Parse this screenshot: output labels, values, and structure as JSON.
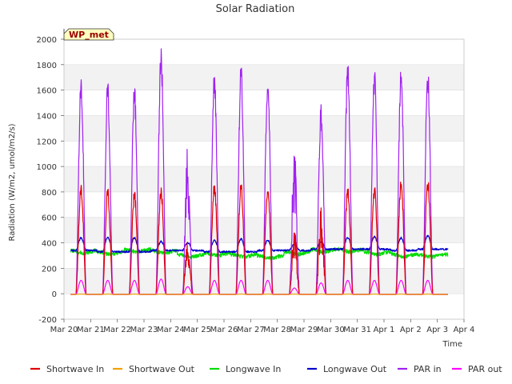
{
  "chart_data": {
    "type": "line",
    "title": "Solar Radiation",
    "xlabel": "Time",
    "ylabel": "Radiation (W/m2, umol/m2/s)",
    "station_label": "WP_met",
    "ylim": [
      -200,
      2000
    ],
    "yticks": [
      -200,
      0,
      200,
      400,
      600,
      800,
      1000,
      1200,
      1400,
      1600,
      1800,
      2000
    ],
    "xlim": [
      0,
      15
    ],
    "xtick_labels": [
      "Mar 20",
      "Mar 21",
      "Mar 22",
      "Mar 23",
      "Mar 24",
      "Mar 25",
      "Mar 26",
      "Mar 27",
      "Mar 28",
      "Mar 29",
      "Mar 30",
      "Mar 31",
      "Apr 1",
      "Apr 2",
      "Apr 3",
      "Apr 4"
    ],
    "grid_bands": true,
    "legend_position": "bottom",
    "day_start": 0.25,
    "data_end": 14.4,
    "series": [
      {
        "name": "Shortwave In",
        "color": "#dd0000",
        "daily_peaks": [
          890,
          840,
          830,
          850,
          420,
          900,
          880,
          880,
          520,
          680,
          860,
          860,
          910,
          930
        ]
      },
      {
        "name": "Shortwave Out",
        "color": "#f0a000",
        "daily_peaks": [
          2,
          2,
          2,
          2,
          2,
          2,
          2,
          2,
          2,
          2,
          2,
          2,
          2,
          2
        ]
      },
      {
        "name": "Longwave In",
        "color": "#00dd00",
        "daily_levels": [
          330,
          320,
          340,
          330,
          300,
          310,
          300,
          290,
          320,
          340,
          340,
          320,
          300,
          300
        ]
      },
      {
        "name": "Longwave Out",
        "color": "#0000cc",
        "daily_levels": [
          340,
          330,
          330,
          340,
          340,
          330,
          330,
          340,
          340,
          350,
          350,
          350,
          340,
          350
        ],
        "daily_peaks": [
          440,
          440,
          440,
          410,
          400,
          420,
          430,
          420,
          390,
          410,
          440,
          450,
          440,
          455
        ]
      },
      {
        "name": "PAR in",
        "color": "#a020f0",
        "daily_peaks": [
          1750,
          1680,
          1670,
          1960,
          1180,
          1800,
          1820,
          1760,
          1170,
          1490,
          1860,
          1790,
          1800,
          1810
        ]
      },
      {
        "name": "PAR out",
        "color": "#ff00ff",
        "daily_peaks": [
          110,
          110,
          110,
          120,
          60,
          110,
          110,
          110,
          50,
          90,
          110,
          110,
          110,
          110
        ]
      }
    ]
  }
}
